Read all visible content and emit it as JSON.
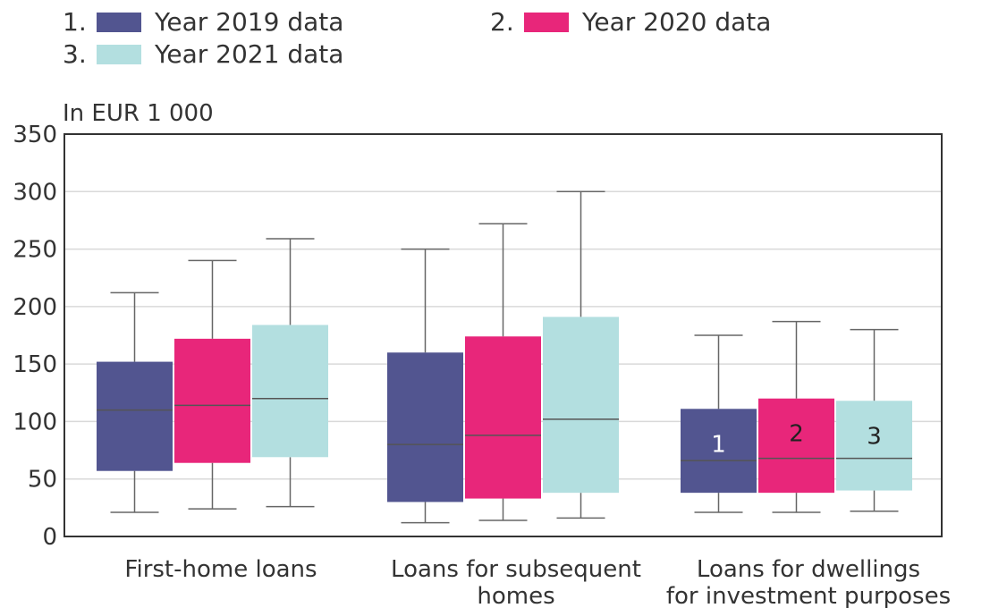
{
  "chart_data": {
    "type": "box",
    "title": "",
    "unit_label": "In EUR 1 000",
    "xlabel": "",
    "ylabel": "",
    "ylim": [
      0,
      350
    ],
    "yticks": [
      0,
      50,
      100,
      150,
      200,
      250,
      300,
      350
    ],
    "grid": true,
    "legend_position": "top",
    "categories": [
      [
        "First-home loans"
      ],
      [
        "Loans for subsequent",
        "homes"
      ],
      [
        "Loans for dwellings",
        "for investment purposes"
      ]
    ],
    "series": [
      {
        "number": "1.",
        "name": "Year 2019 data",
        "color": "#525590",
        "boxes": [
          {
            "whisker_low": 21,
            "q1": 57,
            "median": 110,
            "q3": 152,
            "whisker_high": 212
          },
          {
            "whisker_low": 12,
            "q1": 30,
            "median": 80,
            "q3": 160,
            "whisker_high": 250
          },
          {
            "whisker_low": 21,
            "q1": 38,
            "median": 66,
            "q3": 111,
            "whisker_high": 175
          }
        ]
      },
      {
        "number": "2.",
        "name": "Year 2020 data",
        "color": "#e8267a",
        "boxes": [
          {
            "whisker_low": 24,
            "q1": 64,
            "median": 114,
            "q3": 172,
            "whisker_high": 240
          },
          {
            "whisker_low": 14,
            "q1": 33,
            "median": 88,
            "q3": 174,
            "whisker_high": 272
          },
          {
            "whisker_low": 21,
            "q1": 38,
            "median": 68,
            "q3": 120,
            "whisker_high": 187
          }
        ]
      },
      {
        "number": "3.",
        "name": "Year 2021 data",
        "color": "#b3dfe0",
        "boxes": [
          {
            "whisker_low": 26,
            "q1": 69,
            "median": 120,
            "q3": 184,
            "whisker_high": 259
          },
          {
            "whisker_low": 16,
            "q1": 38,
            "median": 102,
            "q3": 191,
            "whisker_high": 300
          },
          {
            "whisker_low": 22,
            "q1": 40,
            "median": 68,
            "q3": 118,
            "whisker_high": 180
          }
        ]
      }
    ],
    "box_labels": {
      "category_index": 2,
      "labels": [
        "1",
        "2",
        "3"
      ],
      "colors": [
        "#ffffff",
        "#222222",
        "#222222"
      ]
    }
  }
}
